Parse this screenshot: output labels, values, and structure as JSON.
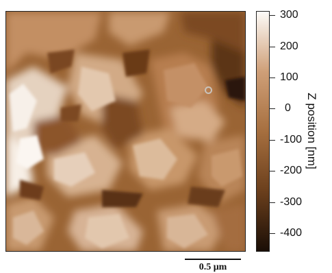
{
  "colorbar": {
    "title": "Z position [nm]",
    "min": -450,
    "max": 300,
    "ticks": [
      "300",
      "200",
      "100",
      "0",
      "-100",
      "-200",
      "-300",
      "-400"
    ],
    "colors": [
      "#1a0e06",
      "#6b3f1c",
      "#a66f3f",
      "#cf9f78",
      "#fdfbf8"
    ]
  },
  "scalebar": {
    "label": "0.5 μm"
  }
}
